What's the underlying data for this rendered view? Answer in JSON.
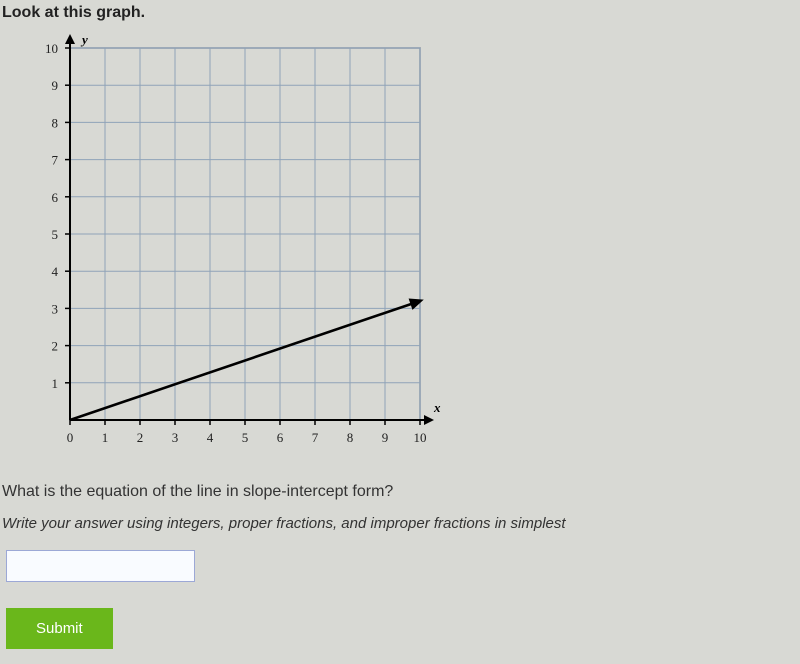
{
  "prompt": "Look at this graph.",
  "question": "What is the equation of the line in slope-intercept form?",
  "instruction": "Write your answer using integers, proper fractions, and improper fractions in simplest",
  "answer_value": "",
  "submit_label": "Submit",
  "chart": {
    "type": "line",
    "x_label": "x",
    "y_label": "y",
    "xlim": [
      0,
      10
    ],
    "ylim": [
      0,
      10
    ],
    "xtick_step": 1,
    "ytick_step": 1,
    "xtick_labels": [
      "0",
      "1",
      "2",
      "3",
      "4",
      "5",
      "6",
      "7",
      "8",
      "9",
      "10"
    ],
    "ytick_labels": [
      "1",
      "2",
      "3",
      "4",
      "5",
      "6",
      "7",
      "8",
      "9",
      "10"
    ],
    "grid_color": "#8fa3b8",
    "border_color": "#7f8c99",
    "background_color": "#d8d9d4",
    "axis_color": "#000000",
    "tick_fontsize": 13,
    "axis_label_fontsize": 13,
    "line": {
      "points": [
        [
          0,
          0
        ],
        [
          10,
          3.2
        ]
      ],
      "color": "#000000",
      "width": 2.6,
      "arrow": true
    }
  }
}
